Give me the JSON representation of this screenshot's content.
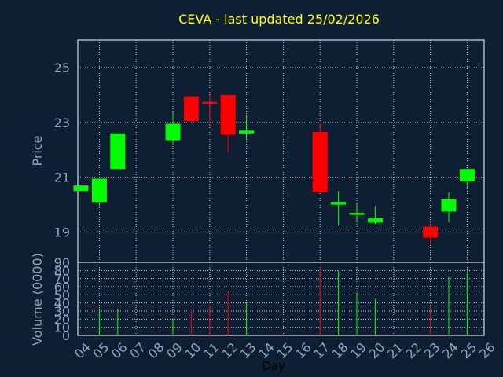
{
  "chart_data": {
    "type": "candlestick",
    "title": "CEVA - last updated 25/02/2026",
    "price_axis": {
      "label": "Price",
      "ylim": [
        17.9,
        26.0
      ],
      "ticks": [
        "25",
        "23",
        "21",
        "19"
      ],
      "tick_values": [
        25,
        23,
        21,
        19
      ]
    },
    "volume_axis": {
      "label": "Volume (0000)",
      "ylim": [
        0,
        90
      ],
      "ticks": [
        "90",
        "80",
        "70",
        "60",
        "50",
        "40",
        "30",
        "20",
        "10",
        "0"
      ],
      "tick_values": [
        90,
        80,
        70,
        60,
        50,
        40,
        30,
        20,
        10,
        0
      ]
    },
    "x_axis": {
      "label": "Day",
      "ticks": [
        "04",
        "05",
        "06",
        "07",
        "08",
        "09",
        "10",
        "11",
        "12",
        "13",
        "14",
        "15",
        "16",
        "17",
        "18",
        "19",
        "20",
        "21",
        "22",
        "23",
        "24",
        "25",
        "26"
      ]
    },
    "grid": true,
    "up_color": "#00ff00",
    "down_color": "#ff0000",
    "candles": [
      {
        "day": "04",
        "open": 20.5,
        "close": 20.7,
        "high": 20.7,
        "low": 20.5,
        "volume": 0
      },
      {
        "day": "05",
        "open": 20.1,
        "close": 20.95,
        "high": 20.95,
        "low": 20.0,
        "volume": 33
      },
      {
        "day": "06",
        "open": 21.3,
        "close": 22.6,
        "high": 22.6,
        "low": 21.3,
        "volume": 33
      },
      {
        "day": "09",
        "open": 22.35,
        "close": 22.95,
        "high": 23.4,
        "low": 22.2,
        "volume": 21
      },
      {
        "day": "10",
        "open": 23.95,
        "close": 23.05,
        "high": 23.95,
        "low": 23.0,
        "volume": 32
      },
      {
        "day": "11",
        "open": 23.75,
        "close": 23.7,
        "high": 24.0,
        "low": 22.9,
        "volume": 38
      },
      {
        "day": "12",
        "open": 24.0,
        "close": 22.55,
        "high": 24.0,
        "low": 21.9,
        "volume": 54
      },
      {
        "day": "13",
        "open": 22.6,
        "close": 22.7,
        "high": 23.25,
        "low": 22.35,
        "volume": 40
      },
      {
        "day": "17",
        "open": 22.65,
        "close": 20.45,
        "high": 22.95,
        "low": 20.45,
        "volume": 84
      },
      {
        "day": "18",
        "open": 20.0,
        "close": 20.1,
        "high": 20.5,
        "low": 19.25,
        "volume": 80
      },
      {
        "day": "19",
        "open": 19.7,
        "close": 19.7,
        "high": 20.05,
        "low": 19.35,
        "volume": 53
      },
      {
        "day": "20",
        "open": 19.35,
        "close": 19.5,
        "high": 19.95,
        "low": 19.3,
        "volume": 45
      },
      {
        "day": "23",
        "open": 19.2,
        "close": 18.8,
        "high": 19.35,
        "low": 18.55,
        "volume": 37
      },
      {
        "day": "24",
        "open": 19.75,
        "close": 20.2,
        "high": 20.45,
        "low": 19.35,
        "volume": 72
      },
      {
        "day": "25",
        "open": 20.85,
        "close": 21.3,
        "high": 21.3,
        "low": 20.6,
        "volume": 77
      }
    ]
  }
}
